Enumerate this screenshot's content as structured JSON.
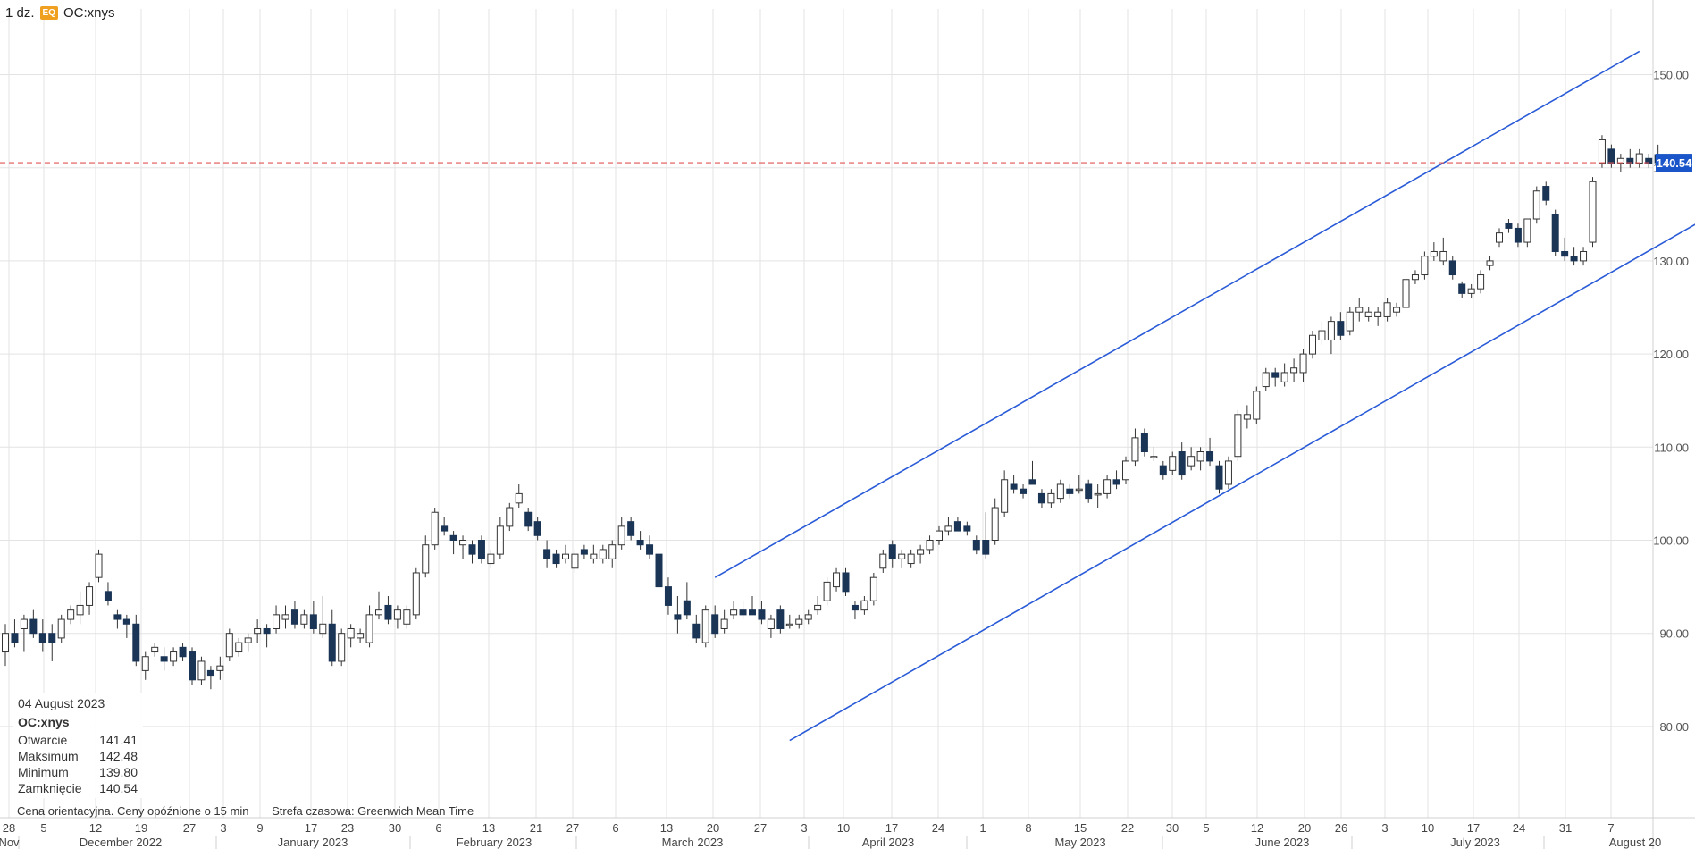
{
  "header": {
    "interval": "1 dz.",
    "badge": "EQ",
    "symbol": "OC:xnys"
  },
  "info_panel": {
    "date": "04 August 2023",
    "symbol": "OC:xnys",
    "rows": [
      {
        "label": "Otwarcie",
        "value": "141.41"
      },
      {
        "label": "Maksimum",
        "value": "142.48"
      },
      {
        "label": "Minimum",
        "value": "139.80"
      },
      {
        "label": "Zamknięcie",
        "value": "140.54"
      }
    ]
  },
  "footnote": {
    "delay": "Cena orientacyjna. Ceny opóźnione o 15 min",
    "timezone": "Strefa czasowa: Greenwich Mean Time"
  },
  "colors": {
    "up": "#ffffff",
    "down": "#1b3556",
    "wick": "#333333",
    "trendline": "#2a5bd7",
    "last_price": "#e05555",
    "price_tag": "#1a56c9",
    "grid": "#e3e3e3"
  },
  "chart_data": {
    "type": "candlestick",
    "y_axis": {
      "ticks": [
        "150.00",
        "140.00",
        "130.00",
        "120.00",
        "110.00",
        "100.00",
        "90.00",
        "80.00"
      ]
    },
    "last_price": "140.54",
    "x_axis": {
      "day_ticks": [
        "28",
        "5",
        "12",
        "19",
        "27",
        "3",
        "9",
        "17",
        "23",
        "30",
        "6",
        "13",
        "21",
        "27",
        "6",
        "13",
        "20",
        "27",
        "3",
        "10",
        "17",
        "24",
        "1",
        "8",
        "15",
        "22",
        "30",
        "5",
        "12",
        "20",
        "26",
        "3",
        "10",
        "17",
        "24",
        "31",
        "7"
      ],
      "month_labels": [
        "Nov",
        "December 2022",
        "January 2023",
        "February 2023",
        "March 2023",
        "April 2023",
        "May 2023",
        "June 2023",
        "July 2023",
        "August 20"
      ]
    },
    "candles": [
      {
        "o": 88.0,
        "h": 91.0,
        "l": 86.5,
        "c": 90.0
      },
      {
        "o": 90.0,
        "h": 91.5,
        "l": 88.5,
        "c": 89.0
      },
      {
        "o": 90.5,
        "h": 92.0,
        "l": 88.0,
        "c": 91.5
      },
      {
        "o": 91.5,
        "h": 92.5,
        "l": 89.5,
        "c": 90.0
      },
      {
        "o": 90.0,
        "h": 91.5,
        "l": 88.0,
        "c": 89.0
      },
      {
        "o": 90.0,
        "h": 91.0,
        "l": 87.0,
        "c": 89.0
      },
      {
        "o": 89.5,
        "h": 92.0,
        "l": 89.0,
        "c": 91.5
      },
      {
        "o": 91.5,
        "h": 93.0,
        "l": 91.0,
        "c": 92.5
      },
      {
        "o": 92.0,
        "h": 94.5,
        "l": 91.0,
        "c": 93.0
      },
      {
        "o": 93.0,
        "h": 95.5,
        "l": 92.0,
        "c": 95.0
      },
      {
        "o": 96.0,
        "h": 99.0,
        "l": 95.5,
        "c": 98.5
      },
      {
        "o": 94.5,
        "h": 95.5,
        "l": 93.0,
        "c": 93.5
      },
      {
        "o": 92.0,
        "h": 92.5,
        "l": 90.5,
        "c": 91.5
      },
      {
        "o": 91.5,
        "h": 92.0,
        "l": 89.5,
        "c": 91.0
      },
      {
        "o": 91.0,
        "h": 92.0,
        "l": 86.5,
        "c": 87.0
      },
      {
        "o": 86.0,
        "h": 88.0,
        "l": 85.0,
        "c": 87.5
      },
      {
        "o": 88.0,
        "h": 89.0,
        "l": 87.5,
        "c": 88.5
      },
      {
        "o": 87.5,
        "h": 88.5,
        "l": 86.0,
        "c": 87.0
      },
      {
        "o": 87.0,
        "h": 88.5,
        "l": 86.5,
        "c": 88.0
      },
      {
        "o": 88.5,
        "h": 89.0,
        "l": 87.0,
        "c": 87.5
      },
      {
        "o": 88.0,
        "h": 88.5,
        "l": 84.5,
        "c": 85.0
      },
      {
        "o": 85.0,
        "h": 87.5,
        "l": 84.5,
        "c": 87.0
      },
      {
        "o": 86.0,
        "h": 86.5,
        "l": 84.0,
        "c": 85.5
      },
      {
        "o": 86.0,
        "h": 87.5,
        "l": 85.0,
        "c": 86.5
      },
      {
        "o": 87.5,
        "h": 90.5,
        "l": 87.0,
        "c": 90.0
      },
      {
        "o": 88.0,
        "h": 89.5,
        "l": 87.5,
        "c": 89.0
      },
      {
        "o": 89.0,
        "h": 90.0,
        "l": 88.0,
        "c": 89.5
      },
      {
        "o": 90.0,
        "h": 91.5,
        "l": 89.0,
        "c": 90.5
      },
      {
        "o": 90.5,
        "h": 91.0,
        "l": 88.5,
        "c": 90.0
      },
      {
        "o": 90.5,
        "h": 93.0,
        "l": 90.0,
        "c": 92.0
      },
      {
        "o": 91.5,
        "h": 93.0,
        "l": 90.5,
        "c": 92.0
      },
      {
        "o": 92.5,
        "h": 93.5,
        "l": 90.5,
        "c": 91.0
      },
      {
        "o": 91.0,
        "h": 92.5,
        "l": 90.5,
        "c": 92.0
      },
      {
        "o": 92.0,
        "h": 93.5,
        "l": 90.0,
        "c": 90.5
      },
      {
        "o": 90.0,
        "h": 94.0,
        "l": 89.5,
        "c": 91.0
      },
      {
        "o": 91.0,
        "h": 92.5,
        "l": 86.5,
        "c": 87.0
      },
      {
        "o": 87.0,
        "h": 90.5,
        "l": 86.5,
        "c": 90.0
      },
      {
        "o": 89.5,
        "h": 91.0,
        "l": 88.5,
        "c": 90.5
      },
      {
        "o": 89.5,
        "h": 90.5,
        "l": 89.0,
        "c": 90.0
      },
      {
        "o": 89.0,
        "h": 93.0,
        "l": 88.5,
        "c": 92.0
      },
      {
        "o": 92.0,
        "h": 94.5,
        "l": 91.5,
        "c": 92.5
      },
      {
        "o": 93.0,
        "h": 94.0,
        "l": 91.0,
        "c": 91.5
      },
      {
        "o": 91.5,
        "h": 93.0,
        "l": 90.5,
        "c": 92.5
      },
      {
        "o": 91.0,
        "h": 93.0,
        "l": 90.5,
        "c": 92.5
      },
      {
        "o": 92.0,
        "h": 97.0,
        "l": 91.5,
        "c": 96.5
      },
      {
        "o": 96.5,
        "h": 100.5,
        "l": 96.0,
        "c": 99.5
      },
      {
        "o": 99.5,
        "h": 103.5,
        "l": 99.0,
        "c": 103.0
      },
      {
        "o": 101.5,
        "h": 102.5,
        "l": 100.5,
        "c": 101.0
      },
      {
        "o": 100.5,
        "h": 101.0,
        "l": 98.5,
        "c": 100.0
      },
      {
        "o": 99.5,
        "h": 100.5,
        "l": 98.0,
        "c": 100.0
      },
      {
        "o": 99.5,
        "h": 100.0,
        "l": 97.5,
        "c": 98.5
      },
      {
        "o": 100.0,
        "h": 100.5,
        "l": 97.5,
        "c": 98.0
      },
      {
        "o": 97.5,
        "h": 99.0,
        "l": 97.0,
        "c": 98.5
      },
      {
        "o": 98.5,
        "h": 102.5,
        "l": 98.0,
        "c": 101.5
      },
      {
        "o": 101.5,
        "h": 104.0,
        "l": 101.0,
        "c": 103.5
      },
      {
        "o": 104.0,
        "h": 106.0,
        "l": 103.5,
        "c": 105.0
      },
      {
        "o": 103.0,
        "h": 103.5,
        "l": 101.0,
        "c": 101.5
      },
      {
        "o": 102.0,
        "h": 102.5,
        "l": 100.0,
        "c": 100.5
      },
      {
        "o": 99.0,
        "h": 100.0,
        "l": 97.0,
        "c": 98.0
      },
      {
        "o": 98.5,
        "h": 99.0,
        "l": 97.0,
        "c": 97.5
      },
      {
        "o": 98.0,
        "h": 99.5,
        "l": 97.5,
        "c": 98.5
      },
      {
        "o": 97.0,
        "h": 99.0,
        "l": 96.5,
        "c": 98.5
      },
      {
        "o": 99.0,
        "h": 99.5,
        "l": 98.0,
        "c": 98.5
      },
      {
        "o": 98.0,
        "h": 99.5,
        "l": 97.5,
        "c": 98.5
      },
      {
        "o": 98.0,
        "h": 99.5,
        "l": 97.5,
        "c": 99.0
      },
      {
        "o": 98.0,
        "h": 100.0,
        "l": 97.0,
        "c": 99.5
      },
      {
        "o": 99.5,
        "h": 102.5,
        "l": 99.0,
        "c": 101.5
      },
      {
        "o": 102.0,
        "h": 102.5,
        "l": 100.0,
        "c": 100.5
      },
      {
        "o": 100.0,
        "h": 101.0,
        "l": 99.0,
        "c": 99.5
      },
      {
        "o": 99.5,
        "h": 100.5,
        "l": 98.0,
        "c": 98.5
      },
      {
        "o": 98.5,
        "h": 99.0,
        "l": 94.0,
        "c": 95.0
      },
      {
        "o": 95.0,
        "h": 96.0,
        "l": 92.0,
        "c": 93.0
      },
      {
        "o": 92.0,
        "h": 94.0,
        "l": 90.0,
        "c": 91.5
      },
      {
        "o": 93.5,
        "h": 95.5,
        "l": 91.5,
        "c": 92.0
      },
      {
        "o": 91.0,
        "h": 92.0,
        "l": 89.0,
        "c": 89.5
      },
      {
        "o": 89.0,
        "h": 93.0,
        "l": 88.5,
        "c": 92.5
      },
      {
        "o": 92.0,
        "h": 93.0,
        "l": 89.5,
        "c": 90.0
      },
      {
        "o": 90.5,
        "h": 92.5,
        "l": 90.0,
        "c": 91.5
      },
      {
        "o": 92.0,
        "h": 93.5,
        "l": 91.5,
        "c": 92.5
      },
      {
        "o": 92.5,
        "h": 93.5,
        "l": 91.5,
        "c": 92.0
      },
      {
        "o": 92.5,
        "h": 94.0,
        "l": 92.0,
        "c": 92.0
      },
      {
        "o": 92.5,
        "h": 93.5,
        "l": 91.0,
        "c": 91.5
      },
      {
        "o": 90.5,
        "h": 92.0,
        "l": 89.5,
        "c": 91.5
      },
      {
        "o": 92.5,
        "h": 93.0,
        "l": 90.0,
        "c": 90.5
      },
      {
        "o": 91.0,
        "h": 92.0,
        "l": 90.5,
        "c": 91.0
      },
      {
        "o": 91.0,
        "h": 92.0,
        "l": 90.5,
        "c": 91.5
      },
      {
        "o": 91.5,
        "h": 92.5,
        "l": 91.0,
        "c": 92.0
      },
      {
        "o": 92.5,
        "h": 94.0,
        "l": 92.0,
        "c": 93.0
      },
      {
        "o": 93.5,
        "h": 96.0,
        "l": 93.0,
        "c": 95.5
      },
      {
        "o": 95.0,
        "h": 97.0,
        "l": 94.5,
        "c": 96.5
      },
      {
        "o": 96.5,
        "h": 97.0,
        "l": 94.0,
        "c": 94.5
      },
      {
        "o": 93.0,
        "h": 93.5,
        "l": 91.5,
        "c": 92.5
      },
      {
        "o": 92.5,
        "h": 94.0,
        "l": 92.0,
        "c": 93.5
      },
      {
        "o": 93.5,
        "h": 96.5,
        "l": 93.0,
        "c": 96.0
      },
      {
        "o": 97.0,
        "h": 99.0,
        "l": 96.5,
        "c": 98.5
      },
      {
        "o": 99.5,
        "h": 100.0,
        "l": 97.0,
        "c": 98.0
      },
      {
        "o": 98.0,
        "h": 99.0,
        "l": 97.0,
        "c": 98.5
      },
      {
        "o": 97.5,
        "h": 99.0,
        "l": 97.0,
        "c": 98.5
      },
      {
        "o": 98.5,
        "h": 99.5,
        "l": 97.5,
        "c": 99.0
      },
      {
        "o": 99.0,
        "h": 100.5,
        "l": 98.5,
        "c": 100.0
      },
      {
        "o": 100.0,
        "h": 101.5,
        "l": 99.5,
        "c": 101.0
      },
      {
        "o": 101.0,
        "h": 102.5,
        "l": 100.5,
        "c": 101.5
      },
      {
        "o": 102.0,
        "h": 102.5,
        "l": 101.0,
        "c": 101.0
      },
      {
        "o": 101.5,
        "h": 102.0,
        "l": 100.5,
        "c": 101.0
      },
      {
        "o": 100.0,
        "h": 100.5,
        "l": 98.5,
        "c": 99.0
      },
      {
        "o": 100.0,
        "h": 103.0,
        "l": 98.0,
        "c": 98.5
      },
      {
        "o": 100.0,
        "h": 104.5,
        "l": 99.5,
        "c": 103.5
      },
      {
        "o": 103.0,
        "h": 107.5,
        "l": 102.5,
        "c": 106.5
      },
      {
        "o": 106.0,
        "h": 107.0,
        "l": 105.0,
        "c": 105.5
      },
      {
        "o": 105.5,
        "h": 106.0,
        "l": 104.5,
        "c": 105.0
      },
      {
        "o": 106.5,
        "h": 108.5,
        "l": 106.0,
        "c": 106.0
      },
      {
        "o": 105.0,
        "h": 105.5,
        "l": 103.5,
        "c": 104.0
      },
      {
        "o": 104.0,
        "h": 105.5,
        "l": 103.5,
        "c": 105.0
      },
      {
        "o": 104.5,
        "h": 106.5,
        "l": 104.0,
        "c": 106.0
      },
      {
        "o": 105.5,
        "h": 106.0,
        "l": 104.5,
        "c": 105.0
      },
      {
        "o": 105.5,
        "h": 107.0,
        "l": 105.0,
        "c": 105.5
      },
      {
        "o": 106.0,
        "h": 106.5,
        "l": 104.0,
        "c": 104.5
      },
      {
        "o": 105.0,
        "h": 106.0,
        "l": 103.5,
        "c": 105.0
      },
      {
        "o": 105.0,
        "h": 107.0,
        "l": 104.5,
        "c": 106.5
      },
      {
        "o": 106.5,
        "h": 107.5,
        "l": 105.5,
        "c": 106.0
      },
      {
        "o": 106.5,
        "h": 109.0,
        "l": 106.0,
        "c": 108.5
      },
      {
        "o": 108.5,
        "h": 112.0,
        "l": 108.0,
        "c": 111.0
      },
      {
        "o": 111.5,
        "h": 112.0,
        "l": 109.0,
        "c": 109.5
      },
      {
        "o": 109.0,
        "h": 110.0,
        "l": 108.5,
        "c": 109.0
      },
      {
        "o": 108.0,
        "h": 108.5,
        "l": 106.5,
        "c": 107.0
      },
      {
        "o": 107.5,
        "h": 109.5,
        "l": 107.0,
        "c": 109.0
      },
      {
        "o": 109.5,
        "h": 110.5,
        "l": 106.5,
        "c": 107.0
      },
      {
        "o": 108.0,
        "h": 110.0,
        "l": 107.5,
        "c": 109.0
      },
      {
        "o": 108.5,
        "h": 110.0,
        "l": 107.5,
        "c": 109.5
      },
      {
        "o": 109.5,
        "h": 111.0,
        "l": 108.0,
        "c": 108.5
      },
      {
        "o": 108.0,
        "h": 108.5,
        "l": 105.0,
        "c": 105.5
      },
      {
        "o": 106.0,
        "h": 109.0,
        "l": 105.5,
        "c": 108.5
      },
      {
        "o": 109.0,
        "h": 114.0,
        "l": 108.5,
        "c": 113.5
      },
      {
        "o": 113.0,
        "h": 114.5,
        "l": 112.0,
        "c": 113.5
      },
      {
        "o": 113.0,
        "h": 116.5,
        "l": 112.5,
        "c": 116.0
      },
      {
        "o": 116.5,
        "h": 118.5,
        "l": 116.0,
        "c": 118.0
      },
      {
        "o": 118.0,
        "h": 118.5,
        "l": 116.5,
        "c": 117.5
      },
      {
        "o": 117.0,
        "h": 119.0,
        "l": 116.5,
        "c": 118.0
      },
      {
        "o": 118.0,
        "h": 119.5,
        "l": 117.0,
        "c": 118.5
      },
      {
        "o": 118.0,
        "h": 120.5,
        "l": 117.0,
        "c": 120.0
      },
      {
        "o": 120.0,
        "h": 122.5,
        "l": 119.5,
        "c": 122.0
      },
      {
        "o": 121.5,
        "h": 123.5,
        "l": 121.0,
        "c": 122.5
      },
      {
        "o": 121.5,
        "h": 124.0,
        "l": 120.0,
        "c": 123.5
      },
      {
        "o": 123.5,
        "h": 124.5,
        "l": 121.5,
        "c": 122.0
      },
      {
        "o": 122.5,
        "h": 125.0,
        "l": 122.0,
        "c": 124.5
      },
      {
        "o": 124.5,
        "h": 126.0,
        "l": 123.5,
        "c": 125.0
      },
      {
        "o": 124.0,
        "h": 125.0,
        "l": 123.5,
        "c": 124.5
      },
      {
        "o": 124.0,
        "h": 125.0,
        "l": 123.0,
        "c": 124.5
      },
      {
        "o": 124.0,
        "h": 126.0,
        "l": 123.5,
        "c": 125.5
      },
      {
        "o": 124.5,
        "h": 125.5,
        "l": 124.0,
        "c": 125.0
      },
      {
        "o": 125.0,
        "h": 128.5,
        "l": 124.5,
        "c": 128.0
      },
      {
        "o": 128.0,
        "h": 129.0,
        "l": 127.5,
        "c": 128.5
      },
      {
        "o": 128.5,
        "h": 131.0,
        "l": 128.0,
        "c": 130.5
      },
      {
        "o": 130.5,
        "h": 132.0,
        "l": 130.0,
        "c": 131.0
      },
      {
        "o": 130.0,
        "h": 132.5,
        "l": 129.5,
        "c": 131.0
      },
      {
        "o": 130.0,
        "h": 130.5,
        "l": 128.0,
        "c": 128.5
      },
      {
        "o": 127.5,
        "h": 127.8,
        "l": 126.0,
        "c": 126.5
      },
      {
        "o": 126.5,
        "h": 127.5,
        "l": 126.0,
        "c": 127.0
      },
      {
        "o": 127.0,
        "h": 129.0,
        "l": 126.5,
        "c": 128.5
      },
      {
        "o": 129.5,
        "h": 130.5,
        "l": 129.0,
        "c": 130.0
      },
      {
        "o": 132.0,
        "h": 133.5,
        "l": 131.5,
        "c": 133.0
      },
      {
        "o": 134.0,
        "h": 134.5,
        "l": 133.0,
        "c": 133.5
      },
      {
        "o": 133.5,
        "h": 134.0,
        "l": 131.5,
        "c": 132.0
      },
      {
        "o": 132.0,
        "h": 134.5,
        "l": 131.5,
        "c": 134.5
      },
      {
        "o": 134.5,
        "h": 138.0,
        "l": 134.0,
        "c": 137.5
      },
      {
        "o": 138.0,
        "h": 138.5,
        "l": 136.0,
        "c": 136.5
      },
      {
        "o": 135.0,
        "h": 135.5,
        "l": 130.5,
        "c": 131.0
      },
      {
        "o": 131.0,
        "h": 132.5,
        "l": 130.0,
        "c": 130.5
      },
      {
        "o": 130.5,
        "h": 131.5,
        "l": 129.5,
        "c": 130.0
      },
      {
        "o": 130.0,
        "h": 131.5,
        "l": 129.5,
        "c": 131.0
      },
      {
        "o": 132.0,
        "h": 139.0,
        "l": 131.5,
        "c": 138.5
      },
      {
        "o": 140.5,
        "h": 143.5,
        "l": 140.0,
        "c": 143.0
      },
      {
        "o": 142.0,
        "h": 142.5,
        "l": 140.0,
        "c": 140.5
      },
      {
        "o": 140.5,
        "h": 141.5,
        "l": 139.5,
        "c": 141.0
      },
      {
        "o": 141.0,
        "h": 142.0,
        "l": 140.0,
        "c": 140.5
      },
      {
        "o": 140.5,
        "h": 142.0,
        "l": 140.0,
        "c": 141.5
      },
      {
        "o": 141.0,
        "h": 141.5,
        "l": 140.0,
        "c": 140.5
      },
      {
        "o": 141.41,
        "h": 142.48,
        "l": 139.8,
        "c": 140.54
      }
    ],
    "channel_lines": [
      {
        "from": {
          "index": 76,
          "price": 96.0
        },
        "to": {
          "index": 175,
          "price": 152.5
        }
      },
      {
        "from": {
          "index": 84,
          "price": 78.5
        },
        "to": {
          "index": 182,
          "price": 134.5
        }
      }
    ]
  }
}
